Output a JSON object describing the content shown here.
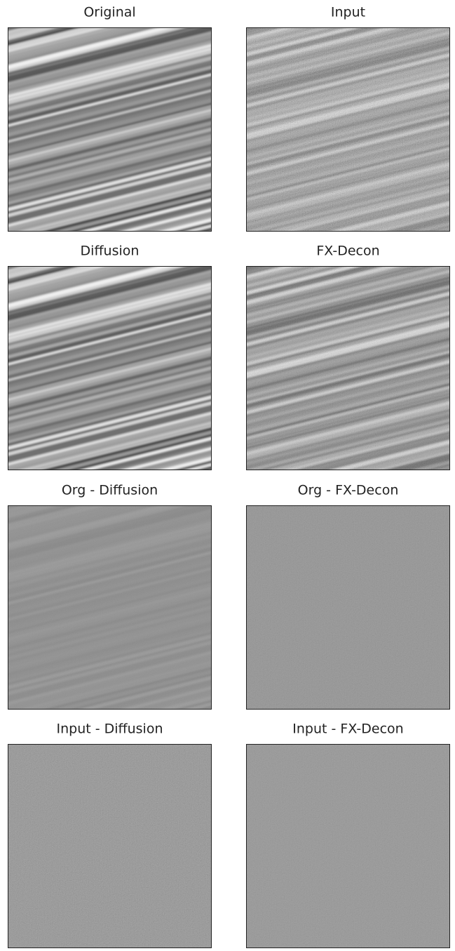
{
  "panels": [
    {
      "title": "Original"
    },
    {
      "title": "Input"
    },
    {
      "title": "Diffusion"
    },
    {
      "title": "FX-Decon"
    },
    {
      "title": "Org - Diffusion"
    },
    {
      "title": "Org - FX-Decon"
    },
    {
      "title": "Input - Diffusion"
    },
    {
      "title": "Input - FX-Decon"
    }
  ]
}
